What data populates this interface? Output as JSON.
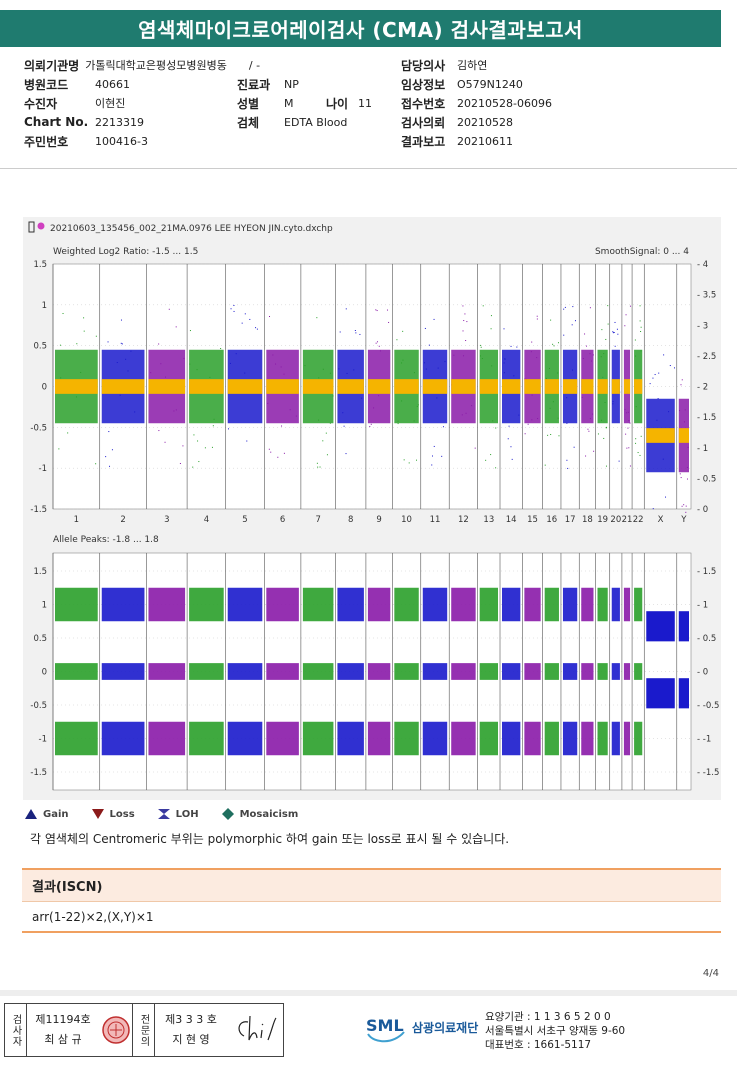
{
  "report": {
    "title": "염색체마이크로어레이검사 (CMA) 검사결과보고서",
    "page": "4/4"
  },
  "patient": {
    "institution_label": "의뢰기관명",
    "institution": "가톨릭대학교은평성모병원병동",
    "ward": "/ -",
    "hospital_code_label": "병원코드",
    "hospital_code": "40661",
    "patient_name_label": "수진자",
    "patient_name": "이현진",
    "chart_no_label": "Chart No.",
    "chart_no": "2213319",
    "id_no_label": "주민번호",
    "id_no": "100416-3",
    "department_label": "진료과",
    "department": "NP",
    "sex_label": "성별",
    "sex": "M",
    "age_label": "나이",
    "age": "11",
    "specimen_label": "검체",
    "specimen": "EDTA Blood",
    "physician_label": "담당의사",
    "physician": "김하연",
    "clinical_info_label": "임상정보",
    "clinical_info": "O579N1240",
    "receipt_no_label": "접수번호",
    "receipt_no": "20210528-06096",
    "request_date_label": "검사의뢰",
    "request_date": "20210528",
    "report_date_label": "결과보고",
    "report_date": "20210611"
  },
  "plot": {
    "filename": "20210603_135456_002_21MA.0976 LEE HYEON JIN.cyto.dxchp",
    "top_label": "Weighted Log2 Ratio: -1.5 ... 1.5",
    "top_right_label": "SmoothSignal: 0 ... 4",
    "bottom_label": "Allele Peaks: -1.8 ... 1.8",
    "left_ticks_top": [
      "1.5",
      "1",
      "0.5",
      "0",
      "-0.5",
      "-1",
      "-1.5"
    ],
    "right_ticks_top": [
      "4",
      "3.5",
      "3",
      "2.5",
      "2",
      "1.5",
      "1",
      "0.5",
      "0"
    ],
    "left_ticks_bottom": [
      "1.5",
      "1",
      "0.5",
      "0",
      "-0.5",
      "-1",
      "-1.5"
    ],
    "right_ticks_bottom": [
      "1.5",
      "1",
      "0.5",
      "0",
      "-0.5",
      "-1",
      "-1.5"
    ],
    "chromosomes": [
      "1",
      "2",
      "3",
      "4",
      "5",
      "6",
      "7",
      "8",
      "9",
      "10",
      "11",
      "12",
      "13",
      "14",
      "15",
      "16",
      "17",
      "18",
      "19",
      "20",
      "21",
      "22",
      "X",
      "Y"
    ]
  },
  "legend": {
    "gain": "Gain",
    "loss": "Loss",
    "loh": "LOH",
    "mosaicism": "Mosaicism",
    "gain_color": "#1a237e",
    "loss_color": "#8b1a1a",
    "loh_color": "#3a3aa0",
    "mosaicism_color": "#1f6f5f"
  },
  "note": "각 염색체의 Centromeric 부위는 polymorphic 하여 gain 또는 loss로 표시 될 수 있습니다.",
  "result": {
    "heading": "결과(ISCN)",
    "value": "arr(1-22)×2,(X,Y)×1"
  },
  "signatures": {
    "examiner_role": "검사자",
    "examiner_no": "제11194호",
    "examiner_name": "최 삼 규",
    "specialist_role": "전문의",
    "specialist_no": "제3 3 3 호",
    "specialist_name": "지 현 영"
  },
  "organization": {
    "logo": "SML",
    "name": "삼광의료재단",
    "facility_code": "요양기관 : 1 1 3 6 5 2 0 0",
    "address": "서울특별시 서초구 양재동 9-60",
    "phone": "대표번호 : 1661-5117"
  }
}
